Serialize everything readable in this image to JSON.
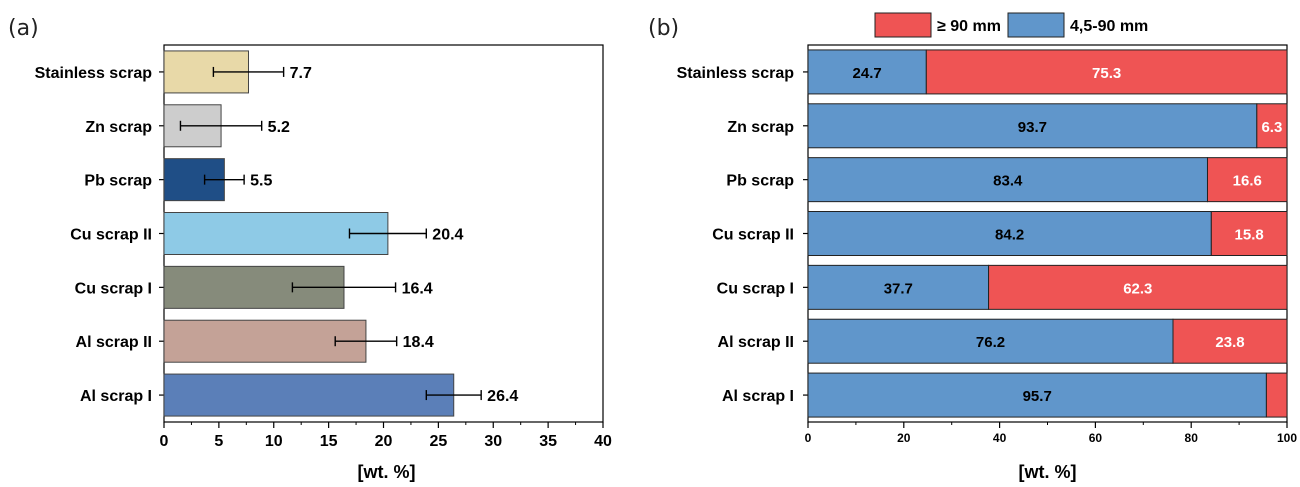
{
  "chart_data": [
    {
      "panel_label": "(a)",
      "type": "bar",
      "orientation": "horizontal",
      "categories": [
        "Stainless scrap",
        "Zn scrap",
        "Pb scrap",
        "Cu scrap II",
        "Cu scrap I",
        "Al scrap II",
        "Al scrap I"
      ],
      "values": [
        7.7,
        5.2,
        5.5,
        20.4,
        16.4,
        18.4,
        26.4
      ],
      "errors": [
        3.2,
        3.7,
        1.8,
        3.5,
        4.7,
        2.8,
        2.5
      ],
      "value_labels": [
        "7.7",
        "5.2",
        "5.5",
        "20.4",
        "16.4",
        "18.4",
        "26.4"
      ],
      "bar_colors": [
        "#e8d9a8",
        "#cdcdcd",
        "#1f4e86",
        "#8ecae6",
        "#868b7b",
        "#c4a297",
        "#5b7fb8"
      ],
      "xlabel": "[wt. %]",
      "xlim": [
        0,
        40
      ],
      "xticks": [
        "0",
        "5",
        "10",
        "15",
        "20",
        "25",
        "30",
        "35",
        "40"
      ],
      "grid": false
    },
    {
      "panel_label": "(b)",
      "type": "bar",
      "orientation": "horizontal",
      "stacked": true,
      "categories": [
        "Stainless scrap",
        "Zn scrap",
        "Pb scrap",
        "Cu scrap II",
        "Cu scrap I",
        "Al scrap II",
        "Al scrap I"
      ],
      "series": [
        {
          "name": "4,5-90 mm",
          "color": "#6096cb",
          "values": [
            24.7,
            93.7,
            83.4,
            84.2,
            37.7,
            76.2,
            95.7
          ],
          "labels": [
            "24.7",
            "93.7",
            "83.4",
            "84.2",
            "37.7",
            "76.2",
            "95.7"
          ]
        },
        {
          "name": "≥ 90 mm",
          "color": "#ef5454",
          "values": [
            75.3,
            6.3,
            16.6,
            15.8,
            62.3,
            23.8,
            4.3
          ],
          "labels": [
            "75.3",
            "6.3",
            "16.6",
            "15.8",
            "62.3",
            "23.8",
            ""
          ]
        }
      ],
      "legend_order": [
        "≥ 90 mm",
        "4,5-90 mm"
      ],
      "legend_position": "top",
      "xlabel": "[wt. %]",
      "xlim": [
        0,
        100
      ],
      "xticks": [
        "0",
        "20",
        "40",
        "60",
        "80",
        "100"
      ],
      "grid": false
    }
  ]
}
